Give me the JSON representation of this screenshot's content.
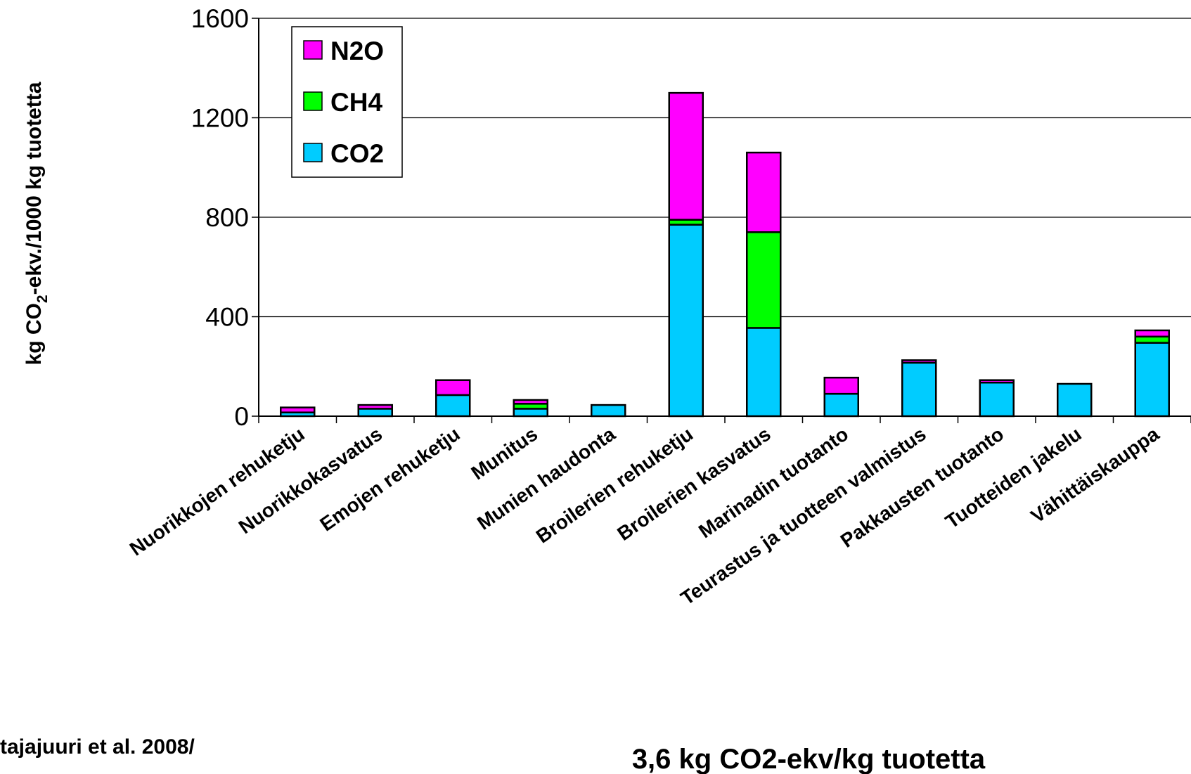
{
  "chart_data": {
    "type": "bar",
    "stacked": true,
    "ylabel_parts": [
      "kg CO",
      "2",
      "-ekv./1000 kg tuotetta"
    ],
    "ylim": [
      0,
      1600
    ],
    "yticks": [
      "0",
      "400",
      "800",
      "1200",
      "1600"
    ],
    "grid": true,
    "legend_position": "top-left",
    "categories": [
      "Nuorikkojen rehuketju",
      "Nuorikkokasvatus",
      "Emojen rehuketju",
      "Munitus",
      "Munien haudonta",
      "Broilerien rehuketju",
      "Broilerien kasvatus",
      "Marinadin tuotanto",
      "Teurastus ja tuotteen valmistus",
      "Pakkausten tuotanto",
      "Tuotteiden jakelu",
      "Vähittäiskauppa"
    ],
    "series": [
      {
        "name": "CO2",
        "color": "#00ccff",
        "values": [
          15,
          30,
          85,
          30,
          45,
          770,
          355,
          90,
          215,
          135,
          130,
          295
        ]
      },
      {
        "name": "CH4",
        "color": "#00ff00",
        "values": [
          0,
          0,
          0,
          20,
          0,
          20,
          385,
          0,
          0,
          0,
          0,
          25
        ]
      },
      {
        "name": "N2O",
        "color": "#ff00ff",
        "values": [
          20,
          15,
          60,
          15,
          0,
          510,
          320,
          65,
          10,
          10,
          0,
          25
        ]
      }
    ],
    "legend_order": [
      "N2O",
      "CH4",
      "CO2"
    ]
  },
  "footer": {
    "citation_line1": "tajajuuri et al. 2008/",
    "citation_line2": "",
    "total": "3,6 kg CO2-ekv/kg tuotetta"
  }
}
